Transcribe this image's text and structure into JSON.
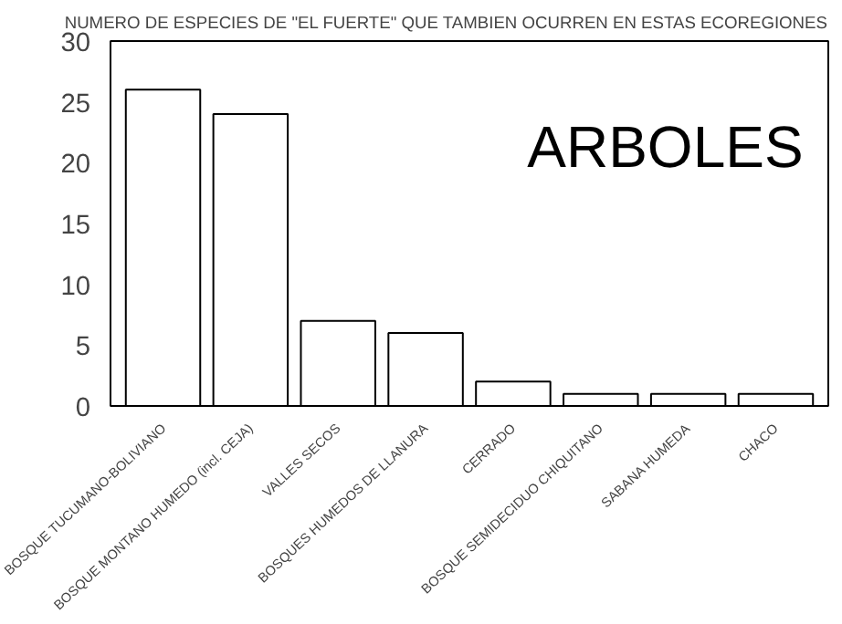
{
  "chart_data": {
    "type": "bar",
    "title": "NUMERO DE ESPECIES DE \"EL FUERTE\" QUE TAMBIEN OCURREN EN ESTAS ECOREGIONES",
    "categories": [
      "BOSQUE TUCUMANO-BOLIVIANO",
      "BOSQUE MONTANO HUMEDO (incl. CEJA)",
      "VALLES SECOS",
      "BOSQUES HUMEDOS DE LLANURA",
      "CERRADO",
      "BOSQUE SEMIDECIDUO CHIQUITANO",
      "SABANA HUMEDA",
      "CHACO"
    ],
    "values": [
      26,
      24,
      7,
      6,
      2,
      1,
      1,
      1
    ],
    "color": "#ffffff",
    "ylim": [
      0,
      30
    ],
    "yticks": [
      0,
      5,
      10,
      15,
      20,
      25,
      30
    ],
    "annotations": [
      "ARBOLES"
    ]
  }
}
